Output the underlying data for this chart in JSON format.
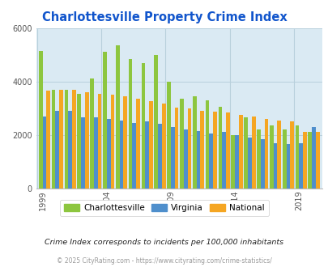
{
  "title": "Charlottesville Property Crime Index",
  "years": [
    1999,
    2000,
    2001,
    2002,
    2003,
    2004,
    2005,
    2006,
    2007,
    2008,
    2009,
    2010,
    2011,
    2012,
    2013,
    2014,
    2015,
    2016,
    2017,
    2018,
    2019,
    2020
  ],
  "charlottesville": [
    5150,
    3700,
    3700,
    3550,
    4100,
    5100,
    5350,
    4850,
    4700,
    5000,
    4000,
    3350,
    3450,
    3300,
    3050,
    2000,
    2650,
    2200,
    2350,
    2200,
    2350,
    2100
  ],
  "virginia": [
    2700,
    2900,
    2900,
    2650,
    2650,
    2600,
    2550,
    2450,
    2500,
    2400,
    2300,
    2200,
    2150,
    2050,
    2100,
    1980,
    1900,
    1850,
    1700,
    1650,
    1680,
    2300
  ],
  "national": [
    3650,
    3700,
    3700,
    3600,
    3520,
    3500,
    3450,
    3350,
    3270,
    3170,
    3020,
    2980,
    2900,
    2880,
    2850,
    2750,
    2700,
    2600,
    2550,
    2500,
    2100,
    2100
  ],
  "bar_colors": {
    "charlottesville": "#8dc63f",
    "virginia": "#4f8fcc",
    "national": "#f5a623"
  },
  "background_color": "#daeaf3",
  "ylim": [
    0,
    6000
  ],
  "yticks": [
    0,
    2000,
    4000,
    6000
  ],
  "separator_years": [
    1999,
    2004,
    2009,
    2014,
    2019
  ],
  "title_color": "#1155cc",
  "title_fontsize": 10.5,
  "legend_labels": [
    "Charlottesville",
    "Virginia",
    "National"
  ],
  "subtitle": "Crime Index corresponds to incidents per 100,000 inhabitants",
  "footer": "© 2025 CityRating.com - https://www.cityrating.com/crime-statistics/",
  "grid_color": "#b8d0dc",
  "outer_bg": "#ffffff"
}
